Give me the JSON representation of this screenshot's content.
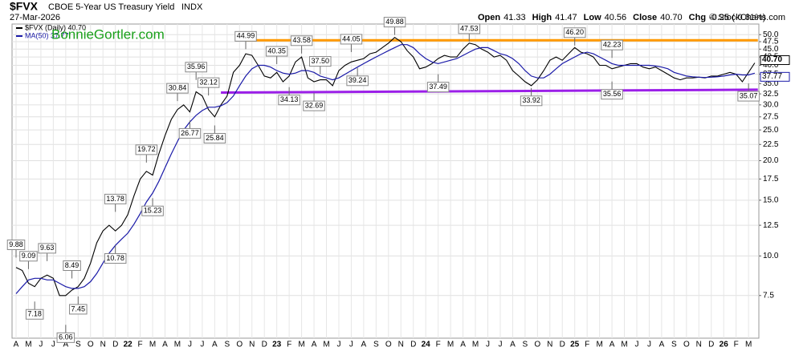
{
  "chart_data": {
    "type": "line",
    "symbol": "$FVX",
    "title": "CBOE 5-Year US Treasury Yield",
    "exchange": "INDX",
    "date": "27-Mar-2026",
    "quote": [
      {
        "label": "Open",
        "value": "41.33"
      },
      {
        "label": "High",
        "value": "41.47"
      },
      {
        "label": "Low",
        "value": "40.56"
      },
      {
        "label": "Close",
        "value": "40.70"
      },
      {
        "label": "Chg",
        "value": "-0.25 (-0.61%)"
      }
    ],
    "credit": "© StockCharts.com",
    "watermark": "BonnieGortler.com",
    "log_scale": true,
    "grid": true,
    "ylim": [
      5.5,
      54
    ],
    "yticks": [
      7.5,
      {
        "value": 10,
        "label": "10.0"
      },
      12.5,
      {
        "value": 15,
        "label": "15.0"
      },
      17.5,
      {
        "value": 20,
        "label": "20.0"
      },
      22.5,
      {
        "value": 25,
        "label": "25.0"
      },
      27.5,
      {
        "value": 30,
        "label": "30.0"
      },
      32.5,
      {
        "value": 35,
        "label": "35.0"
      },
      37.5,
      {
        "value": 40,
        "label": "40.0"
      },
      42.5,
      {
        "value": 45,
        "label": "45.0"
      },
      47.5,
      {
        "value": 50,
        "label": "50.0"
      }
    ],
    "categories": [
      "A",
      null,
      "M",
      null,
      "J",
      null,
      "J",
      null,
      "A",
      null,
      "S",
      null,
      "O",
      null,
      "N",
      null,
      "D",
      null,
      "22",
      null,
      "F",
      null,
      "M",
      null,
      "A",
      null,
      "M",
      null,
      "J",
      null,
      "J",
      null,
      "A",
      null,
      "S",
      null,
      "O",
      null,
      "N",
      null,
      "D",
      null,
      "23",
      null,
      "F",
      null,
      "M",
      null,
      "A",
      null,
      "M",
      null,
      "J",
      null,
      "J",
      null,
      "A",
      null,
      "S",
      null,
      "O",
      null,
      "N",
      null,
      "D",
      null,
      "24",
      null,
      "F",
      null,
      "M",
      null,
      "A",
      null,
      "M",
      null,
      "J",
      null,
      "J",
      null,
      "A",
      null,
      "S",
      null,
      "O",
      null,
      "N",
      null,
      "D",
      null,
      "25",
      null,
      "F",
      null,
      "M",
      null,
      "A",
      null,
      "M",
      null,
      "J",
      null,
      "J",
      null,
      "A",
      null,
      "S",
      null,
      "O",
      null,
      "N",
      null,
      "D",
      null,
      "26",
      null,
      "F",
      null,
      "M",
      null
    ],
    "series": [
      {
        "name": "$FVX (Daily) 40.70",
        "color": "#000000",
        "last_label": "40.70",
        "values": [
          9.2,
          9.0,
          8.2,
          8.0,
          8.5,
          8.7,
          8.5,
          7.5,
          7.5,
          7.8,
          8.0,
          8.5,
          9.5,
          11.0,
          12.0,
          12.5,
          12.0,
          12.5,
          13.5,
          15.5,
          17.5,
          18.5,
          18.0,
          21.0,
          24.0,
          27.0,
          29.0,
          30.0,
          28.5,
          33.0,
          32.0,
          29.0,
          27.5,
          30.0,
          32.0,
          38.0,
          40.0,
          43.5,
          43.0,
          40.0,
          37.0,
          36.5,
          38.0,
          35.5,
          37.0,
          41.0,
          42.5,
          36.5,
          35.5,
          36.0,
          36.0,
          34.5,
          38.5,
          40.0,
          41.0,
          41.5,
          42.0,
          43.5,
          44.0,
          45.5,
          47.0,
          49.0,
          47.5,
          44.5,
          42.5,
          39.0,
          39.5,
          40.5,
          42.0,
          43.0,
          42.5,
          42.5,
          45.0,
          47.0,
          46.5,
          45.0,
          44.0,
          42.5,
          43.0,
          41.5,
          38.5,
          37.0,
          35.5,
          34.5,
          36.0,
          38.5,
          41.5,
          42.5,
          41.5,
          43.5,
          45.5,
          44.0,
          43.5,
          42.5,
          40.0,
          40.0,
          39.0,
          39.5,
          40.0,
          40.5,
          40.5,
          39.5,
          39.0,
          39.5,
          38.5,
          37.5,
          36.5,
          36.0,
          36.5,
          36.5,
          36.7,
          36.5,
          37.0,
          37.0,
          37.5,
          38.0,
          37.5,
          35.5,
          38.0,
          40.7
        ]
      },
      {
        "name": "MA(50) 37.77",
        "color": "#1a1aa8",
        "last_label": "37.77",
        "values": [
          7.6,
          8.0,
          8.4,
          8.5,
          8.5,
          8.4,
          8.4,
          8.2,
          8.0,
          7.9,
          7.9,
          8.0,
          8.3,
          8.8,
          9.5,
          10.2,
          10.8,
          11.3,
          11.8,
          12.6,
          13.6,
          14.8,
          15.8,
          17.2,
          19.0,
          21.0,
          23.0,
          25.0,
          26.5,
          27.8,
          28.8,
          29.5,
          29.5,
          29.8,
          30.5,
          32.0,
          34.5,
          37.0,
          39.0,
          40.0,
          40.0,
          39.5,
          38.5,
          37.8,
          37.5,
          37.8,
          38.5,
          38.5,
          38.0,
          37.0,
          36.5,
          36.0,
          36.5,
          37.5,
          38.5,
          39.5,
          40.5,
          41.5,
          42.5,
          43.5,
          44.5,
          45.5,
          46.5,
          46.5,
          45.5,
          43.5,
          42.0,
          41.0,
          40.5,
          41.0,
          41.5,
          42.0,
          43.0,
          44.0,
          45.0,
          45.5,
          45.5,
          44.5,
          43.5,
          43.0,
          42.0,
          40.5,
          38.5,
          37.0,
          36.5,
          36.5,
          37.5,
          39.0,
          40.5,
          41.5,
          42.5,
          43.5,
          44.0,
          43.5,
          42.5,
          41.5,
          40.5,
          40.0,
          40.0,
          40.0,
          40.0,
          40.0,
          40.0,
          39.8,
          39.5,
          39.0,
          38.0,
          37.5,
          37.0,
          36.8,
          36.7,
          36.6,
          36.7,
          36.8,
          37.0,
          37.3,
          37.5,
          37.3,
          37.3,
          37.77
        ]
      }
    ],
    "annotations": [
      {
        "value": 9.88,
        "x": 0
      },
      {
        "value": 9.09,
        "x": 2
      },
      {
        "value": 7.18,
        "x": 3
      },
      {
        "value": 9.63,
        "x": 5
      },
      {
        "value": 8.49,
        "x": 9
      },
      {
        "value": 7.45,
        "x": 10
      },
      {
        "value": 6.06,
        "x": 8
      },
      {
        "value": 13.78,
        "x": 16
      },
      {
        "value": 10.78,
        "x": 16
      },
      {
        "value": 19.72,
        "x": 21
      },
      {
        "value": 15.23,
        "x": 22
      },
      {
        "value": 30.84,
        "x": 26
      },
      {
        "value": 26.77,
        "x": 28
      },
      {
        "value": 35.96,
        "x": 29
      },
      {
        "value": 32.12,
        "x": 31
      },
      {
        "value": 25.84,
        "x": 32
      },
      {
        "value": 44.99,
        "x": 37
      },
      {
        "value": 40.35,
        "x": 42
      },
      {
        "value": 34.13,
        "x": 44
      },
      {
        "value": 43.58,
        "x": 46
      },
      {
        "value": 37.5,
        "label": "37.50",
        "x": 49
      },
      {
        "value": 32.69,
        "x": 48
      },
      {
        "value": 44.05,
        "x": 54
      },
      {
        "value": 39.24,
        "x": 55
      },
      {
        "value": 49.88,
        "x": 61
      },
      {
        "value": 47.53,
        "x": 73
      },
      {
        "value": 37.49,
        "x": 68
      },
      {
        "value": 33.92,
        "x": 83
      },
      {
        "value": 46.2,
        "label": "46.20",
        "x": 90
      },
      {
        "value": 42.23,
        "x": 96
      },
      {
        "value": 35.56,
        "x": 96
      },
      {
        "value": 35.07,
        "x": 118
      }
    ],
    "trendlines": [
      {
        "color": "#ff9900",
        "from": [
          37,
          48.0
        ],
        "to": [
          119.5,
          48.0
        ]
      },
      {
        "color": "#9b1fe8",
        "from": [
          33,
          32.8
        ],
        "to": [
          119.5,
          33.5
        ]
      }
    ]
  }
}
